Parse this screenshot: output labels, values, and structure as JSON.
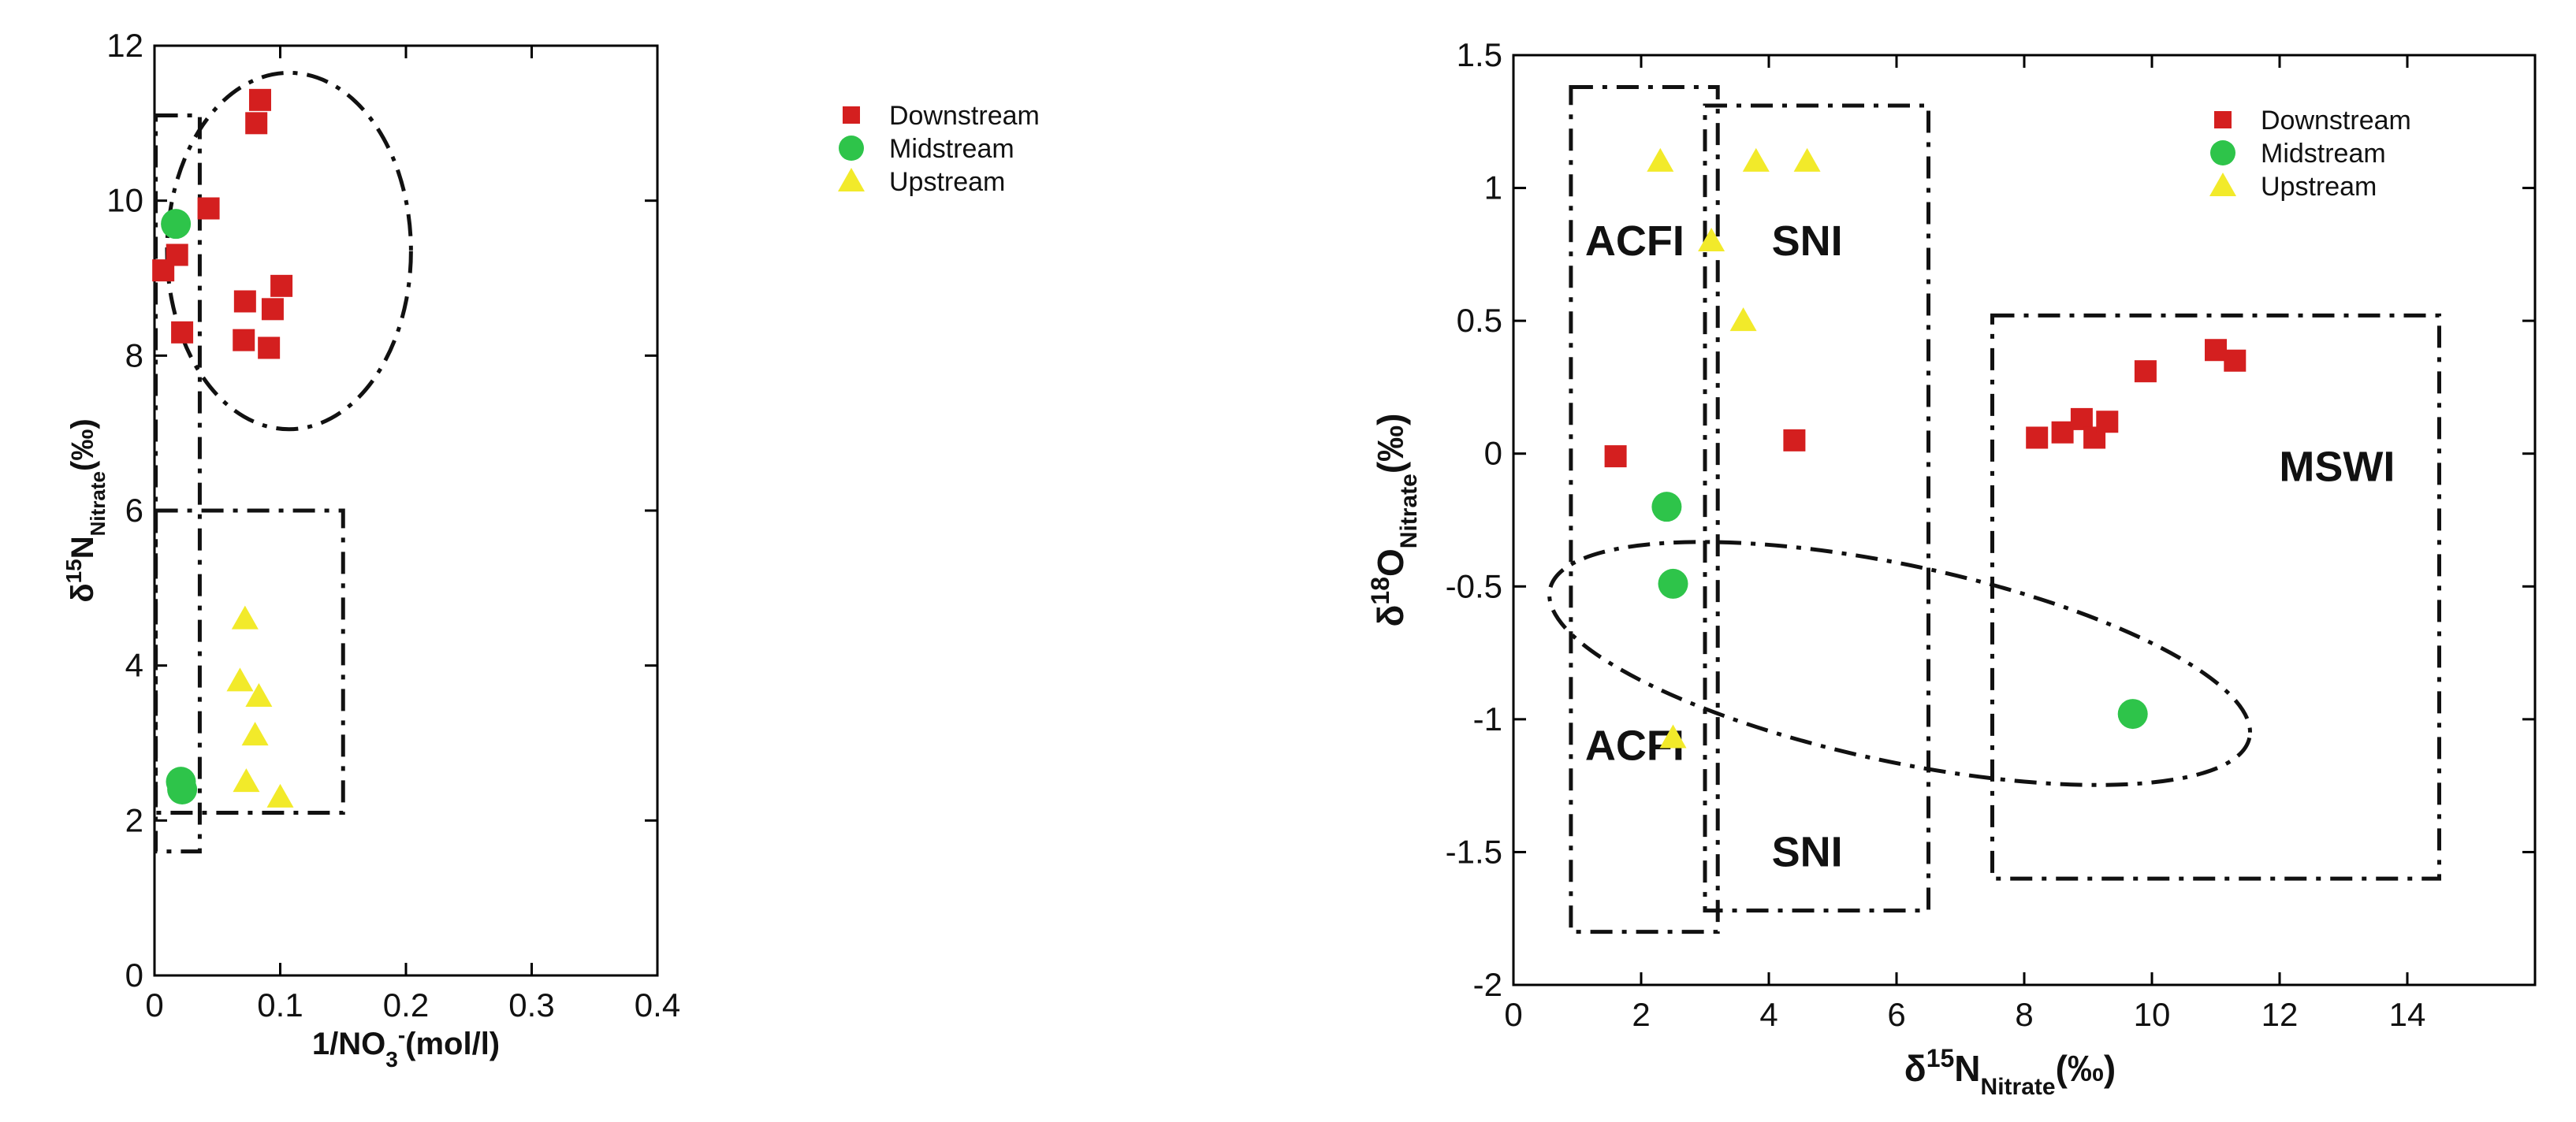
{
  "chart_data": [
    {
      "type": "scatter",
      "xlabel": "1/NO3-(mol/l)",
      "ylabel": "δ15NNitrate(‰)",
      "xlim": [
        0,
        0.4
      ],
      "ylim": [
        0,
        12
      ],
      "xticks": [
        0,
        0.1,
        0.2,
        0.3,
        0.4
      ],
      "xtick_labels": [
        "0",
        "0.1",
        "0.2",
        "0.3",
        "0.4"
      ],
      "yticks": [
        0,
        2,
        4,
        6,
        8,
        10,
        12
      ],
      "ytick_labels": [
        "0",
        "2",
        "4",
        "6",
        "8",
        "10",
        "12"
      ],
      "legend": [
        "Downstream",
        "Midstream",
        "Upstream"
      ],
      "legend_position": "top-right",
      "series": [
        {
          "name": "Downstream",
          "marker": "square",
          "color": "#d41f1f",
          "points": [
            [
              0.007,
              9.1
            ],
            [
              0.018,
              9.3
            ],
            [
              0.022,
              8.3
            ],
            [
              0.043,
              9.9
            ],
            [
              0.072,
              8.7
            ],
            [
              0.071,
              8.2
            ],
            [
              0.081,
              11.0
            ],
            [
              0.084,
              11.3
            ],
            [
              0.094,
              8.6
            ],
            [
              0.091,
              8.1
            ],
            [
              0.101,
              8.9
            ]
          ]
        },
        {
          "name": "Midstream",
          "marker": "circle",
          "color": "#2ec44a",
          "points": [
            [
              0.017,
              9.7
            ],
            [
              0.021,
              2.5
            ],
            [
              0.022,
              2.4
            ]
          ]
        },
        {
          "name": "Upstream",
          "marker": "triangle",
          "color": "#f2ea2a",
          "points": [
            [
              0.072,
              4.6
            ],
            [
              0.068,
              3.8
            ],
            [
              0.083,
              3.6
            ],
            [
              0.08,
              3.1
            ],
            [
              0.073,
              2.5
            ],
            [
              0.1,
              2.3
            ]
          ]
        }
      ],
      "annotations": [
        {
          "shape": "rect",
          "x": [
            0.001,
            0.036
          ],
          "y": [
            1.6,
            11.1
          ]
        },
        {
          "shape": "rect",
          "x": [
            0.001,
            0.15
          ],
          "y": [
            2.1,
            6.0
          ]
        },
        {
          "shape": "ellipse",
          "center": [
            0.107,
            9.35
          ],
          "radius": [
            0.097,
            2.3
          ]
        }
      ]
    },
    {
      "type": "scatter",
      "xlabel": "δ15NNitrate(‰)",
      "ylabel": "δ18ONitrate(‰)",
      "xlim": [
        0,
        16
      ],
      "ylim": [
        -2,
        1.5
      ],
      "xticks": [
        0,
        2,
        4,
        6,
        8,
        10,
        12,
        14
      ],
      "xtick_labels": [
        "0",
        "2",
        "4",
        "6",
        "8",
        "10",
        "12",
        "14"
      ],
      "yticks": [
        -2,
        -1.5,
        -1,
        -0.5,
        0,
        0.5,
        1,
        1.5
      ],
      "ytick_labels": [
        "-2",
        "-1.5",
        "-1",
        "-0.5",
        "0",
        "0.5",
        "1",
        "1.5"
      ],
      "legend": [
        "Downstream",
        "Midstream",
        "Upstream"
      ],
      "legend_position": "top-right",
      "series": [
        {
          "name": "Downstream",
          "marker": "square",
          "color": "#d41f1f",
          "points": [
            [
              1.6,
              -0.01
            ],
            [
              4.4,
              0.05
            ],
            [
              8.2,
              0.06
            ],
            [
              8.6,
              0.08
            ],
            [
              8.9,
              0.13
            ],
            [
              9.1,
              0.06
            ],
            [
              9.3,
              0.12
            ],
            [
              9.9,
              0.31
            ],
            [
              11.0,
              0.39
            ],
            [
              11.3,
              0.35
            ]
          ]
        },
        {
          "name": "Midstream",
          "marker": "circle",
          "color": "#2ec44a",
          "points": [
            [
              2.4,
              -0.2
            ],
            [
              2.5,
              -0.49
            ],
            [
              9.7,
              -0.98
            ]
          ]
        },
        {
          "name": "Upstream",
          "marker": "triangle",
          "color": "#f2ea2a",
          "points": [
            [
              2.3,
              1.1
            ],
            [
              3.1,
              0.8
            ],
            [
              3.8,
              1.1
            ],
            [
              4.6,
              1.1
            ],
            [
              3.6,
              0.5
            ],
            [
              2.5,
              -1.07
            ]
          ]
        }
      ],
      "region_labels": [
        {
          "text": "ACFI",
          "x": 1.9,
          "y": 0.8
        },
        {
          "text": "SNI",
          "x": 4.6,
          "y": 0.8
        },
        {
          "text": "MSWI",
          "x": 12.9,
          "y": -0.05
        },
        {
          "text": "ACFI",
          "x": 1.9,
          "y": -1.1
        },
        {
          "text": "SNI",
          "x": 4.6,
          "y": -1.5
        }
      ],
      "annotations": [
        {
          "shape": "rect",
          "x": [
            0.9,
            3.2
          ],
          "y": [
            -1.8,
            1.38
          ]
        },
        {
          "shape": "rect",
          "x": [
            3.0,
            6.5
          ],
          "y": [
            -1.72,
            1.31
          ]
        },
        {
          "shape": "rect",
          "x": [
            7.5,
            14.5
          ],
          "y": [
            -1.6,
            0.52
          ]
        },
        {
          "shape": "ellipse",
          "center": [
            6.05,
            -0.79
          ],
          "radius": [
            5.6,
            0.37
          ],
          "angle": 12
        }
      ]
    }
  ]
}
